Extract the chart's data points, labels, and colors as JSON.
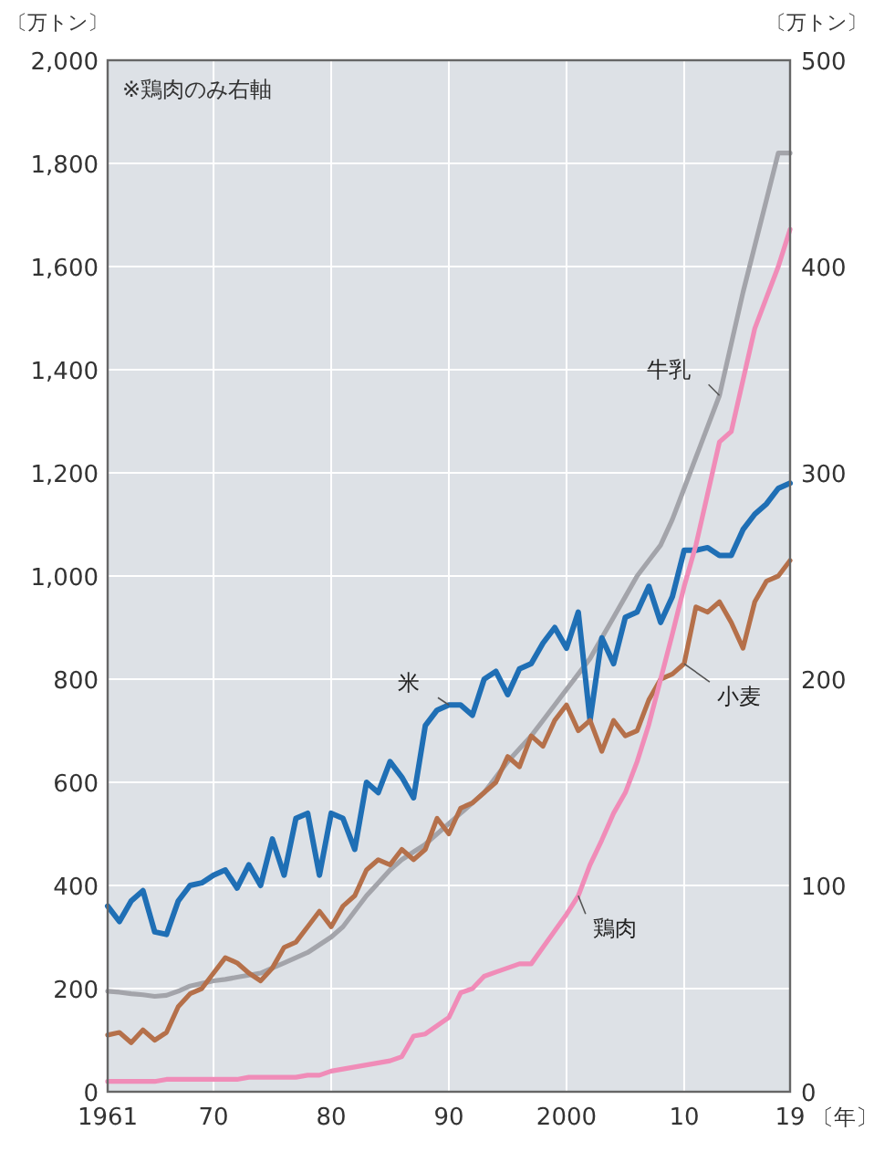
{
  "chart_data": {
    "type": "line",
    "xlabel": "〔年〕",
    "ylabel": "〔万トン〕",
    "y2label": "〔万トン〕",
    "annotations": [
      "※鶏肉のみ右軸"
    ],
    "x": [
      1961,
      1962,
      1963,
      1964,
      1965,
      1966,
      1967,
      1968,
      1969,
      1970,
      1971,
      1972,
      1973,
      1974,
      1975,
      1976,
      1977,
      1978,
      1979,
      1980,
      1981,
      1982,
      1983,
      1984,
      1985,
      1986,
      1987,
      1988,
      1989,
      1990,
      1991,
      1992,
      1993,
      1994,
      1995,
      1996,
      1997,
      1998,
      1999,
      2000,
      2001,
      2002,
      2003,
      2004,
      2005,
      2006,
      2007,
      2008,
      2009,
      2010,
      2011,
      2012,
      2013,
      2014,
      2015,
      2016,
      2017,
      2018,
      2019
    ],
    "xlim": [
      1961,
      2019
    ],
    "xticks": [
      1961,
      {
        "value": 1970,
        "label": "70"
      },
      {
        "value": 1980,
        "label": "80"
      },
      {
        "value": 1990,
        "label": "90"
      },
      2000,
      {
        "value": 2010,
        "label": "10"
      },
      {
        "value": 2019,
        "label": "19"
      }
    ],
    "ylim": [
      0,
      2000
    ],
    "yticks": [
      0,
      200,
      400,
      600,
      800,
      {
        "value": 1000,
        "label": "1,000"
      },
      {
        "value": 1200,
        "label": "1,200"
      },
      {
        "value": 1400,
        "label": "1,400"
      },
      {
        "value": 1600,
        "label": "1,600"
      },
      {
        "value": 1800,
        "label": "1,800"
      },
      {
        "value": 2000,
        "label": "2,000"
      }
    ],
    "y2lim": [
      0,
      500
    ],
    "y2ticks": [
      0,
      100,
      200,
      300,
      400,
      500
    ],
    "grid": true,
    "series": [
      {
        "name": "牛乳",
        "color": "#a3a4aa",
        "values": [
          195,
          193,
          190,
          188,
          185,
          187,
          195,
          205,
          210,
          215,
          218,
          222,
          226,
          230,
          240,
          250,
          260,
          270,
          285,
          300,
          320,
          350,
          380,
          405,
          430,
          450,
          465,
          480,
          500,
          520,
          540,
          560,
          580,
          610,
          640,
          665,
          690,
          720,
          750,
          780,
          810,
          840,
          880,
          920,
          960,
          1000,
          1030,
          1060,
          1110,
          1170,
          1230,
          1290,
          1350,
          1450,
          1550,
          1640,
          1730,
          1820,
          1820
        ]
      },
      {
        "name": "米",
        "color": "#1f6fb5",
        "values": [
          360,
          330,
          370,
          390,
          310,
          305,
          370,
          400,
          405,
          420,
          430,
          395,
          440,
          400,
          490,
          420,
          530,
          540,
          420,
          540,
          530,
          470,
          600,
          580,
          640,
          610,
          570,
          710,
          740,
          750,
          750,
          730,
          800,
          815,
          770,
          820,
          830,
          870,
          900,
          860,
          930,
          720,
          880,
          830,
          920,
          930,
          980,
          910,
          960,
          1050,
          1050,
          1055,
          1040,
          1040,
          1090,
          1120,
          1140,
          1170,
          1180
        ]
      },
      {
        "name": "小麦",
        "color": "#b5704a",
        "values": [
          110,
          115,
          95,
          120,
          100,
          115,
          165,
          190,
          200,
          230,
          260,
          250,
          230,
          215,
          240,
          280,
          290,
          320,
          350,
          320,
          360,
          380,
          430,
          450,
          440,
          470,
          450,
          470,
          530,
          500,
          550,
          560,
          580,
          600,
          650,
          630,
          690,
          670,
          720,
          750,
          700,
          720,
          660,
          720,
          690,
          700,
          760,
          800,
          810,
          830,
          940,
          930,
          950,
          910,
          860,
          950,
          990,
          1000,
          1030
        ]
      },
      {
        "name": "鶏肉",
        "color": "#f08cb8",
        "axis": "y2",
        "values": [
          5,
          5,
          5,
          5,
          5,
          6,
          6,
          6,
          6,
          6,
          6,
          6,
          7,
          7,
          7,
          7,
          7,
          8,
          8,
          10,
          11,
          12,
          13,
          14,
          15,
          17,
          27,
          28,
          32,
          36,
          48,
          50,
          56,
          58,
          60,
          62,
          62,
          70,
          78,
          86,
          95,
          110,
          122,
          135,
          145,
          160,
          178,
          200,
          222,
          245,
          265,
          290,
          315,
          320,
          345,
          370,
          385,
          400,
          418
        ]
      }
    ]
  }
}
